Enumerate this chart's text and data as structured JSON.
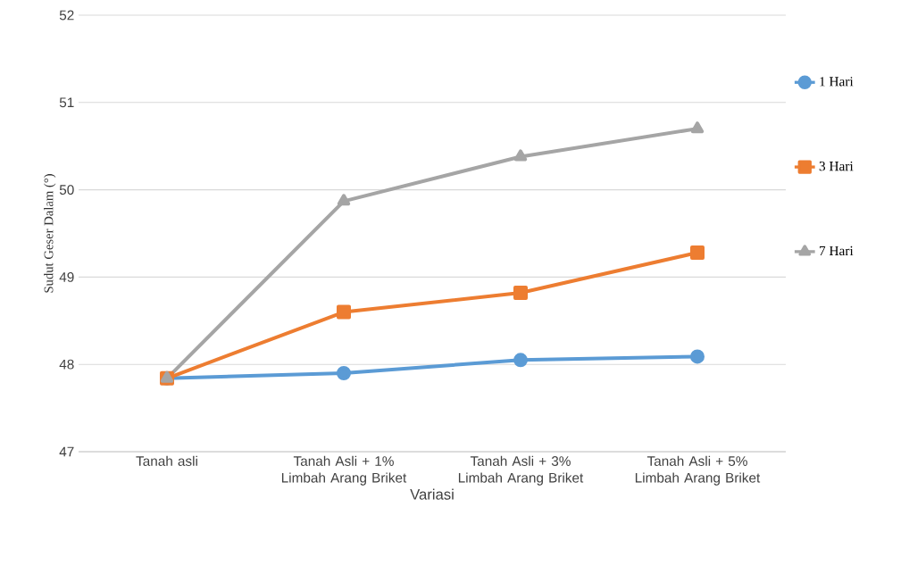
{
  "chart_data": {
    "type": "line",
    "xlabel": "Variasi",
    "ylabel": "Sudut Geser Dalam (°)",
    "categories": [
      "Tanah asli",
      "Tanah Asli + 1% Limbah Arang Briket",
      "Tanah Asli + 3% Limbah Arang Briket",
      "Tanah Asli + 5% Limbah Arang Briket"
    ],
    "series": [
      {
        "name": "1 Hari",
        "color": "#5b9bd5",
        "marker": "circle",
        "values": [
          47.84,
          47.9,
          48.05,
          48.09
        ]
      },
      {
        "name": "3 Hari",
        "color": "#ed7d31",
        "marker": "square",
        "values": [
          47.84,
          48.6,
          48.82,
          49.28
        ]
      },
      {
        "name": "7 Hari",
        "color": "#a5a5a5",
        "marker": "triangle",
        "values": [
          47.84,
          49.87,
          50.38,
          50.7
        ]
      }
    ],
    "ylim": [
      47,
      52
    ],
    "yticks": [
      47,
      48,
      49,
      50,
      51,
      52
    ],
    "grid": "y",
    "legend": "right",
    "line_style": "solid"
  }
}
